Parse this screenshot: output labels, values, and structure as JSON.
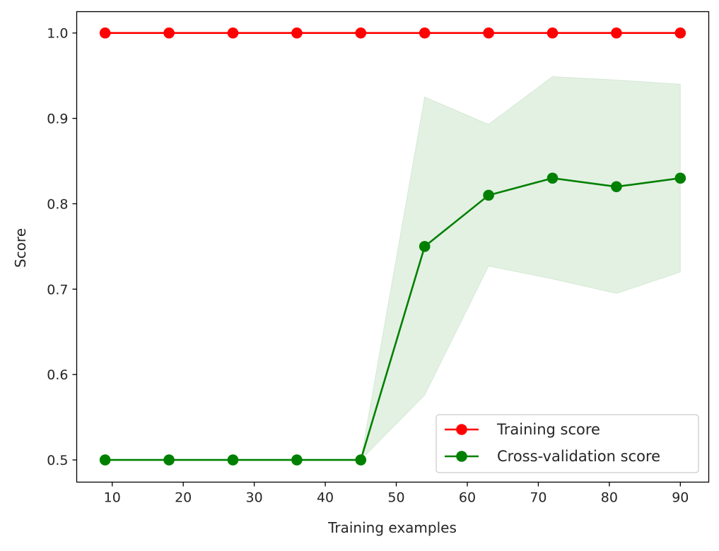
{
  "chart_data": {
    "type": "line",
    "title": "",
    "xlabel": "Training examples",
    "ylabel": "Score",
    "xlim": [
      5,
      94
    ],
    "ylim": [
      0.474,
      1.025
    ],
    "xticks": [
      10,
      20,
      30,
      40,
      50,
      60,
      70,
      80,
      90
    ],
    "xtick_labels": [
      "10",
      "20",
      "30",
      "40",
      "50",
      "60",
      "70",
      "80",
      "90"
    ],
    "yticks": [
      0.5,
      0.6,
      0.7,
      0.8,
      0.9,
      1.0
    ],
    "ytick_labels": [
      "0.5",
      "0.6",
      "0.7",
      "0.8",
      "0.9",
      "1.0"
    ],
    "grid": false,
    "legend_position": "bottom-right",
    "x": [
      9,
      18,
      27,
      36,
      45,
      54,
      63,
      72,
      81,
      90
    ],
    "series": [
      {
        "name": "Training score",
        "color": "#ff0000",
        "values": [
          1.0,
          1.0,
          1.0,
          1.0,
          1.0,
          1.0,
          1.0,
          1.0,
          1.0,
          1.0
        ]
      },
      {
        "name": "Cross-validation score",
        "color": "#008000",
        "values": [
          0.5,
          0.5,
          0.5,
          0.5,
          0.5,
          0.75,
          0.81,
          0.83,
          0.82,
          0.83
        ],
        "band_upper": [
          0.5,
          0.5,
          0.5,
          0.5,
          0.5,
          0.925,
          0.893,
          0.949,
          0.945,
          0.94
        ],
        "band_lower": [
          0.5,
          0.5,
          0.5,
          0.5,
          0.5,
          0.576,
          0.727,
          0.712,
          0.695,
          0.72
        ],
        "band_color": "#008000"
      }
    ]
  }
}
